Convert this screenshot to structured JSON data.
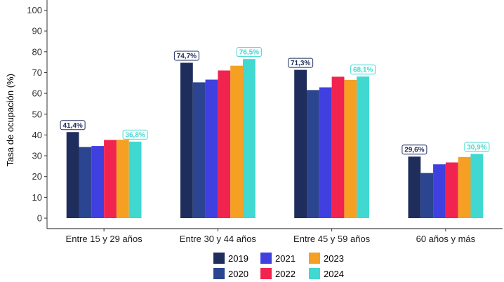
{
  "chart_data": {
    "type": "bar",
    "ylabel": "Tasa de ocupación (%)",
    "xlabel": "",
    "ylim": [
      -5,
      102
    ],
    "yticks": [
      0,
      10,
      20,
      30,
      40,
      50,
      60,
      70,
      80,
      90,
      100
    ],
    "categories": [
      "Entre 15 y 29 años",
      "Entre 30 y 44 años",
      "Entre 45 y 59 años",
      "60 años y más"
    ],
    "series": [
      {
        "name": "2019",
        "color": "#1f2d5c",
        "values": [
          41.4,
          74.7,
          71.3,
          29.6
        ]
      },
      {
        "name": "2020",
        "color": "#2b4590",
        "values": [
          34.2,
          65.3,
          61.6,
          21.7
        ]
      },
      {
        "name": "2021",
        "color": "#4040e0",
        "values": [
          34.7,
          66.6,
          62.9,
          25.9
        ]
      },
      {
        "name": "2022",
        "color": "#f0244e",
        "values": [
          37.6,
          71.0,
          68.0,
          26.8
        ]
      },
      {
        "name": "2023",
        "color": "#f5a023",
        "values": [
          37.7,
          73.3,
          66.5,
          29.4
        ]
      },
      {
        "name": "2024",
        "color": "#40d8d0",
        "values": [
          36.8,
          76.5,
          68.1,
          30.9
        ]
      }
    ],
    "data_labels": [
      {
        "category": 0,
        "series": 0,
        "text": "41,4%"
      },
      {
        "category": 0,
        "series": 5,
        "text": "36,8%"
      },
      {
        "category": 1,
        "series": 0,
        "text": "74,7%"
      },
      {
        "category": 1,
        "series": 5,
        "text": "76,5%"
      },
      {
        "category": 2,
        "series": 0,
        "text": "71,3%"
      },
      {
        "category": 2,
        "series": 5,
        "text": "68,1%"
      },
      {
        "category": 3,
        "series": 0,
        "text": "29,6%"
      },
      {
        "category": 3,
        "series": 5,
        "text": "30,9%"
      }
    ],
    "legend_position": "bottom",
    "grid": false
  }
}
